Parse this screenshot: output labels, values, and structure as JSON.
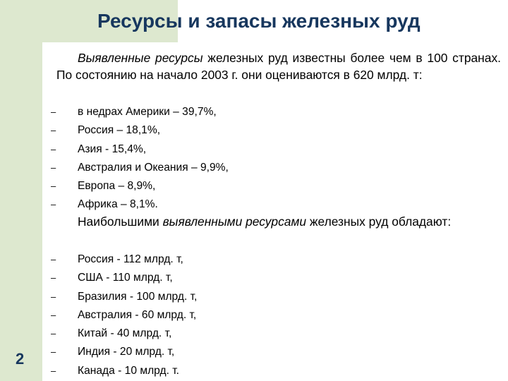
{
  "title": "Ресурсы и запасы железных руд",
  "slide_number": "2",
  "intro": {
    "emphasis": "Выявленные ресурсы",
    "text": " железных руд известны более чем в 100 странах. По состоянию на начало 2003 г. они оцениваются в 620 млрд. т:"
  },
  "regions": [
    "в недрах Америки – 39,7%,",
    "Россия – 18,1%,",
    "Азия - 15,4%,",
    "Австралия и Океания – 9,9%,",
    "Европа – 8,9%,",
    "Африка – 8,1%."
  ],
  "leaders": {
    "before": "Наибольшими ",
    "emphasis": "выявленными ресурсами",
    "after": " железных руд обладают:"
  },
  "countries": [
    "Россия - 112 млрд. т,",
    "США - 110 млрд. т,",
    "Бразилия - 100 млрд. т,",
    "Австралия - 60 млрд. т,",
    "Китай - 40 млрд. т,",
    "Индия - 20 млрд. т,",
    "Канада - 10 млрд. т."
  ],
  "bullet_symbol": "–",
  "colors": {
    "accent_band": "#dde8cf",
    "title": "#17375e"
  }
}
